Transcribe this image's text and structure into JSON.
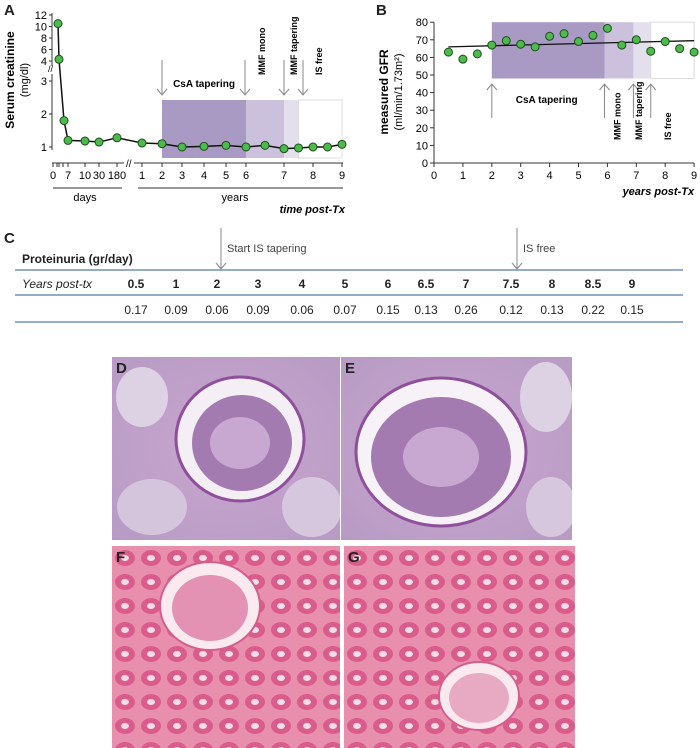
{
  "panels": {
    "a": "A",
    "b": "B",
    "c": "C",
    "d": "D",
    "e": "E",
    "f": "F",
    "g": "G"
  },
  "chart_data": [
    {
      "type": "line",
      "panel": "A",
      "ylabel": "Serum creatinine",
      "yunit": "(mg/dl)",
      "yticks_upper": [
        4,
        6,
        8,
        10,
        12
      ],
      "yticks_lower": [
        1,
        2,
        3
      ],
      "y_axis_break": true,
      "days_ticks": [
        "0",
        "7",
        "10",
        "30",
        "180"
      ],
      "years_ticks": [
        "1",
        "2",
        "3",
        "4",
        "5",
        "6",
        "7",
        "8",
        "9"
      ],
      "group_labels": [
        "days",
        "years"
      ],
      "xlabel": "time post-Tx",
      "days_points": {
        "x": [
          1,
          2,
          3,
          7,
          10,
          30,
          180
        ],
        "y": [
          10.5,
          4.3,
          1.8,
          1.2,
          1.18,
          1.15,
          1.28
        ]
      },
      "years_points": {
        "x": [
          1,
          2,
          3,
          4,
          5,
          6,
          6.5,
          7,
          7.5,
          8,
          8.5,
          9
        ],
        "y": [
          1.12,
          1.1,
          1.0,
          1.02,
          1.05,
          1.0,
          1.05,
          0.95,
          0.97,
          1.0,
          1.0,
          1.08
        ]
      },
      "phases": [
        {
          "label": "CsA tapering",
          "from": 2,
          "to": 6,
          "color": "#a99ac3"
        },
        {
          "label": "MMF mono",
          "from": 6,
          "to": 7,
          "color": "#cbc1dd"
        },
        {
          "label": "MMF tapering",
          "from": 7,
          "to": 7.5,
          "color": "#e4dfec"
        },
        {
          "label": "IS free",
          "from": 7.5,
          "to": 9,
          "color": "#ffffff"
        }
      ],
      "marker_color": "#4cbb4c"
    },
    {
      "type": "scatter",
      "panel": "B",
      "ylabel": "measured GFR",
      "yunit": "(ml/min/1.73m²)",
      "xlabel": "years post-Tx",
      "xlim": [
        0,
        9
      ],
      "ylim": [
        0,
        80
      ],
      "xticks": [
        0,
        1,
        2,
        3,
        4,
        5,
        6,
        7,
        8,
        9
      ],
      "yticks": [
        0,
        10,
        20,
        30,
        40,
        50,
        60,
        70,
        80
      ],
      "x": [
        0.5,
        1,
        1.5,
        2,
        2.5,
        3,
        3.5,
        4,
        4.5,
        5,
        5.5,
        6,
        6.5,
        7,
        7.5,
        8,
        8.5,
        9
      ],
      "y": [
        63,
        59,
        62,
        67,
        69.5,
        67.5,
        66,
        72,
        73.5,
        69,
        72.5,
        76.5,
        67,
        70,
        63.5,
        69,
        65,
        63
      ],
      "trendline": {
        "x": [
          0.5,
          9
        ],
        "y": [
          66,
          69.5
        ]
      },
      "phases": [
        {
          "label": "CsA tapering",
          "from": 2,
          "to": 5.9,
          "color": "#a99ac3"
        },
        {
          "label": "MMF mono",
          "from": 5.9,
          "to": 6.9,
          "color": "#cbc1dd"
        },
        {
          "label": "MMF tapering",
          "from": 6.9,
          "to": 7.5,
          "color": "#e4dfec"
        },
        {
          "label": "IS free",
          "from": 7.5,
          "to": 9,
          "color": "#ffffff"
        }
      ],
      "marker_color": "#4cbb4c"
    }
  ],
  "table": {
    "title": "Proteinuria (gr/day)",
    "row_label": "Years post-tx",
    "years": [
      "0.5",
      "1",
      "2",
      "3",
      "4",
      "5",
      "6",
      "6.5",
      "7",
      "7.5",
      "8",
      "8.5",
      "9"
    ],
    "values": [
      "0.17",
      "0.09",
      "0.06",
      "0.09",
      "0.06",
      "0.07",
      "0.15",
      "0.13",
      "0.26",
      "0.12",
      "0.13",
      "0.22",
      "0.15"
    ],
    "annotations": [
      {
        "label": "Start IS tapering",
        "at": "2"
      },
      {
        "label": "IS free",
        "at": "7.5"
      }
    ],
    "rule_color": "#6f8fb8"
  }
}
